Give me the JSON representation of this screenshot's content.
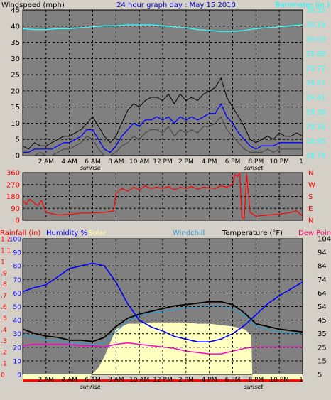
{
  "colors": {
    "background": "#d4d0c8",
    "plot_background": "#808080",
    "wind": "#000000",
    "gust": "#000000",
    "avg_wind": "#0000ff",
    "barometer": "#33ffff",
    "direction": "#ff0000",
    "temperature": "#000000",
    "humidity": "#0000ff",
    "windchill": "#3399cc",
    "dewpoint": "#ff00cc",
    "solar": "#ffffc0",
    "rainfall": "#ff0000",
    "grid": "#000000"
  },
  "chart_data": [
    {
      "type": "line",
      "name": "wind-barometer",
      "title": "24 hour graph day : May 15 2010",
      "ylabel": "Windspeed (mph)",
      "ylabel_right": "Barometer (in.)",
      "ylim": [
        0,
        45
      ],
      "yticks": [
        "0",
        "5",
        "10",
        "15",
        "20",
        "25",
        "30",
        "35",
        "40",
        "45"
      ],
      "ylim_right": [
        28.79,
        30.35
      ],
      "yticks_right": [
        "28.79",
        "28.95",
        "29.10",
        "29.26",
        "29.41",
        "29.57",
        "29.72",
        "29.88",
        "30.03",
        "30.19",
        "30.35"
      ],
      "xlim": [
        0,
        24
      ],
      "xtick_labels": [
        "2 AM",
        "4 AM",
        "6 AM",
        "8 AM",
        "10 AM",
        "12 PM",
        "2 PM",
        "4 PM",
        "6 PM",
        "8 PM",
        "10 PM",
        "1"
      ],
      "sunrise_label": "sunrise",
      "sunset_label": "sunset",
      "sunrise_hour": 5.8,
      "sunset_hour": 19.8,
      "grid": true,
      "series": [
        {
          "key": "wind_gust",
          "x": [
            0,
            0.5,
            1,
            1.5,
            2,
            2.5,
            3,
            3.5,
            4,
            4.5,
            5,
            5.5,
            6,
            6.5,
            7,
            7.5,
            8,
            8.5,
            9,
            9.5,
            10,
            10.5,
            11,
            11.5,
            12,
            12.5,
            13,
            13.5,
            14,
            14.5,
            15,
            15.5,
            16,
            16.5,
            17,
            17.5,
            18,
            18.5,
            19,
            19.5,
            20,
            20.5,
            21,
            21.5,
            22,
            22.5,
            23,
            23.5,
            24
          ],
          "values": [
            3,
            2,
            4,
            3,
            3,
            4,
            5,
            6,
            6,
            7,
            8,
            10,
            12,
            9,
            6,
            4,
            6,
            10,
            14,
            16,
            15,
            17,
            18,
            18,
            17,
            19,
            16,
            19,
            17,
            18,
            17,
            19,
            20,
            21,
            24,
            18,
            15,
            12,
            9,
            5,
            4,
            5,
            6,
            5,
            7,
            6,
            6,
            7,
            6
          ]
        },
        {
          "key": "wind_avg",
          "x": [
            0,
            0.5,
            1,
            1.5,
            2,
            2.5,
            3,
            3.5,
            4,
            4.5,
            5,
            5.5,
            6,
            6.5,
            7,
            7.5,
            8,
            8.5,
            9,
            9.5,
            10,
            10.5,
            11,
            11.5,
            12,
            12.5,
            13,
            13.5,
            14,
            14.5,
            15,
            15.5,
            16,
            16.5,
            17,
            17.5,
            18,
            18.5,
            19,
            19.5,
            20,
            20.5,
            21,
            21.5,
            22,
            22.5,
            23,
            23.5,
            24
          ],
          "values": [
            1,
            1,
            2,
            2,
            2,
            2,
            3,
            4,
            4,
            5,
            6,
            8,
            8,
            5,
            2,
            1,
            3,
            6,
            8,
            10,
            9,
            11,
            11,
            12,
            11,
            12,
            10,
            12,
            11,
            12,
            11,
            12,
            13,
            13,
            16,
            12,
            10,
            7,
            5,
            3,
            2,
            3,
            3,
            3,
            4,
            4,
            4,
            4,
            4
          ]
        },
        {
          "key": "wind_lull",
          "x": [
            0,
            0.5,
            1,
            1.5,
            2,
            2.5,
            3,
            3.5,
            4,
            4.5,
            5,
            5.5,
            6,
            6.5,
            7,
            7.5,
            8,
            8.5,
            9,
            9.5,
            10,
            10.5,
            11,
            11.5,
            12,
            12.5,
            13,
            13.5,
            14,
            14.5,
            15,
            15.5,
            16,
            16.5,
            17,
            17.5,
            18,
            18.5,
            19,
            19.5,
            20,
            20.5,
            21,
            21.5,
            22,
            22.5,
            23,
            23.5,
            24
          ],
          "values": [
            0,
            0,
            0,
            1,
            0,
            0,
            1,
            2,
            2,
            3,
            4,
            6,
            5,
            2,
            0,
            0,
            1,
            3,
            4,
            6,
            5,
            7,
            8,
            8,
            7,
            9,
            6,
            8,
            7,
            8,
            7,
            9,
            9,
            10,
            12,
            8,
            6,
            4,
            2,
            1,
            1,
            1,
            2,
            1,
            2,
            2,
            2,
            2,
            2
          ]
        },
        {
          "key": "barometer",
          "axis": "right",
          "x": [
            0,
            1,
            2,
            3,
            4,
            5,
            6,
            7,
            8,
            9,
            10,
            11,
            12,
            13,
            14,
            15,
            16,
            17,
            18,
            19,
            20,
            21,
            22,
            23,
            24
          ],
          "values": [
            30.15,
            30.14,
            30.14,
            30.15,
            30.15,
            30.16,
            30.17,
            30.18,
            30.18,
            30.19,
            30.19,
            30.19,
            30.18,
            30.17,
            30.16,
            30.14,
            30.13,
            30.12,
            30.12,
            30.13,
            30.15,
            30.16,
            30.17,
            30.18,
            30.19
          ]
        }
      ]
    },
    {
      "type": "scatter",
      "name": "wind-direction",
      "ylim": [
        0,
        360
      ],
      "yticks": [
        "0",
        "90",
        "180",
        "270",
        "360"
      ],
      "yticks_right": [
        "N",
        "E",
        "S",
        "W",
        "N"
      ],
      "xlim": [
        0,
        24
      ],
      "grid": true,
      "series": [
        {
          "key": "direction",
          "x": [
            0,
            0.3,
            0.6,
            1,
            1.3,
            1.6,
            2,
            3,
            4,
            5,
            6,
            7,
            7.8,
            8,
            8.5,
            9,
            9.5,
            10,
            10.5,
            11,
            11.5,
            12,
            12.5,
            13,
            13.5,
            14,
            14.5,
            15,
            15.5,
            16,
            16.5,
            17,
            17.5,
            18,
            18.2,
            18.4,
            18.6,
            18.8,
            19,
            19.2,
            19.5,
            20,
            21,
            22,
            23,
            23.5,
            24
          ],
          "values": [
            150,
            120,
            160,
            130,
            110,
            150,
            60,
            40,
            45,
            55,
            55,
            60,
            70,
            200,
            240,
            220,
            250,
            230,
            260,
            240,
            250,
            240,
            255,
            230,
            250,
            240,
            255,
            235,
            250,
            245,
            240,
            260,
            250,
            270,
            350,
            330,
            360,
            20,
            10,
            350,
            60,
            30,
            40,
            45,
            60,
            70,
            30
          ]
        }
      ]
    },
    {
      "type": "line",
      "name": "temperature-humidity",
      "label_rainfall": "Rainfall (in)",
      "label_humidity": "Humidity %",
      "label_solar": "Solar",
      "label_windchill": "Windchill",
      "label_temperature": "Temperature (°F)",
      "label_dewpoint": "Dew Point",
      "ylim": [
        5,
        104
      ],
      "yticks_right": [
        "5",
        "15",
        "25",
        "35",
        "45",
        "54",
        "64",
        "74",
        "84",
        "94",
        "104"
      ],
      "yticks_humidity": [
        "0",
        "10",
        "20",
        "30",
        "40",
        "50",
        "60",
        "70",
        "80",
        "90",
        "100"
      ],
      "yticks_rain": [
        "0",
        ".1",
        ".2",
        ".3",
        ".4",
        ".5",
        ".6",
        ".7",
        ".8",
        ".9",
        "1",
        "1.1",
        "1.2"
      ],
      "xlim": [
        0,
        24
      ],
      "grid": true,
      "series": [
        {
          "key": "solar",
          "x": [
            0,
            5.7,
            5.8,
            6.5,
            7,
            7.5,
            8,
            9,
            10,
            11,
            12,
            13,
            14,
            15,
            16,
            17,
            18,
            19,
            19.6,
            19.7,
            24
          ],
          "values": [
            0,
            0,
            4,
            10,
            18,
            28,
            38,
            42,
            42,
            43,
            43,
            43,
            43,
            42,
            42,
            41,
            40,
            38,
            34,
            0,
            0
          ]
        },
        {
          "key": "humidity",
          "x": [
            0,
            1,
            2,
            3,
            4,
            5,
            6,
            7,
            8,
            9,
            10,
            11,
            12,
            13,
            14,
            15,
            16,
            17,
            18,
            19,
            20,
            21,
            22,
            23,
            24
          ],
          "values": [
            61,
            64,
            66,
            72,
            78,
            80,
            82,
            80,
            68,
            52,
            40,
            35,
            32,
            28,
            26,
            24,
            24,
            26,
            30,
            36,
            44,
            52,
            58,
            63,
            68
          ]
        },
        {
          "key": "temperature",
          "x": [
            0,
            1,
            2,
            3,
            4,
            5,
            6,
            7,
            8,
            9,
            10,
            11,
            12,
            13,
            14,
            15,
            16,
            17,
            18,
            19,
            20,
            21,
            22,
            23,
            24
          ],
          "values": [
            38,
            35,
            33,
            32,
            30,
            30,
            29,
            32,
            40,
            46,
            49,
            51,
            53,
            55,
            56,
            57,
            58,
            58,
            56,
            50,
            42,
            40,
            38,
            37,
            36
          ]
        },
        {
          "key": "windchill",
          "x": [
            0,
            1,
            2,
            3,
            4,
            5,
            6,
            7,
            8,
            9,
            10,
            11,
            12,
            13,
            14,
            15,
            16,
            17,
            18,
            19,
            20,
            21,
            22,
            23,
            24
          ],
          "values": [
            34,
            32,
            30,
            30,
            28,
            28,
            27,
            28,
            36,
            44,
            48,
            50,
            51,
            52,
            54,
            54,
            55,
            55,
            53,
            48,
            40,
            38,
            36,
            35,
            35
          ]
        },
        {
          "key": "dewpoint",
          "x": [
            0,
            1,
            2,
            3,
            4,
            5,
            6,
            7,
            8,
            9,
            10,
            11,
            12,
            13,
            14,
            15,
            16,
            17,
            18,
            19,
            20,
            21,
            22,
            23,
            24
          ],
          "values": [
            26,
            27,
            27,
            27,
            27,
            26,
            26,
            25,
            27,
            28,
            27,
            26,
            25,
            24,
            22,
            21,
            20,
            20,
            22,
            24,
            25,
            25,
            25,
            25,
            25
          ]
        },
        {
          "key": "rainfall",
          "x": [
            0,
            24
          ],
          "values": [
            0,
            0
          ]
        }
      ]
    }
  ]
}
